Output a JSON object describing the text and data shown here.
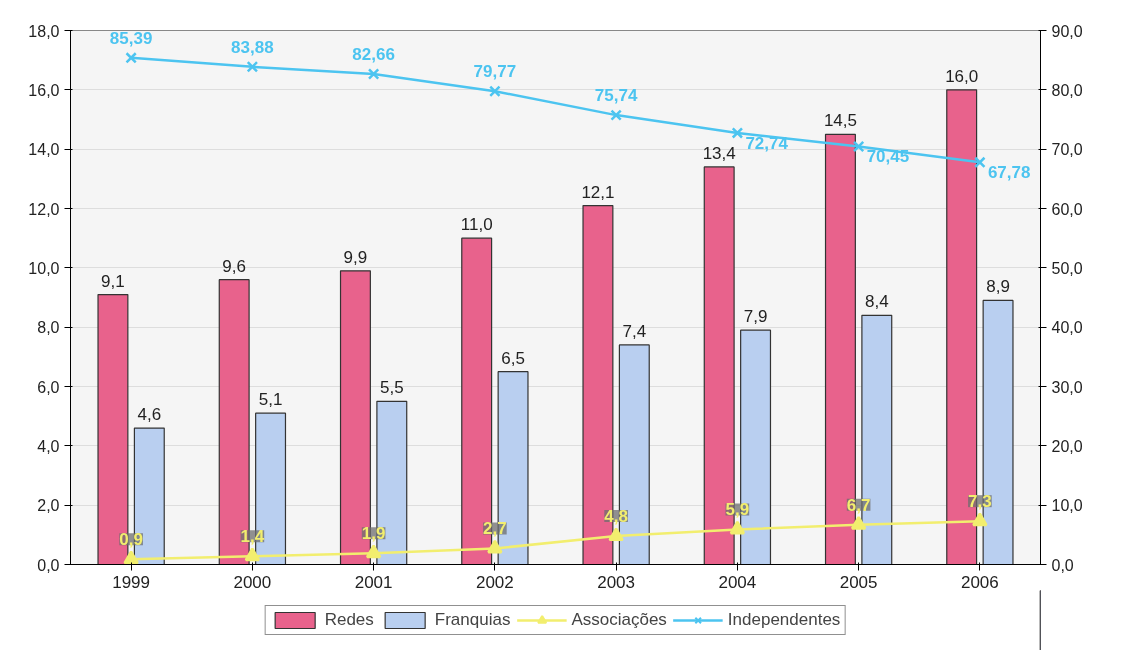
{
  "chart_data": {
    "type": "bar",
    "categories": [
      "1999",
      "2000",
      "2001",
      "2002",
      "2003",
      "2004",
      "2005",
      "2006"
    ],
    "series": [
      {
        "name": "Redes",
        "color": "#e8628c",
        "values": [
          9.1,
          9.6,
          9.9,
          11.0,
          12.1,
          13.4,
          14.5,
          16.0
        ],
        "value_labels": [
          "9,1",
          "9,6",
          "9,9",
          "11,0",
          "12,1",
          "13,4",
          "14,5",
          "16,0"
        ]
      },
      {
        "name": "Franquias",
        "color": "#b9cff0",
        "values": [
          4.6,
          5.1,
          5.5,
          6.5,
          7.4,
          7.9,
          8.4,
          8.9
        ],
        "value_labels": [
          "4,6",
          "5,1",
          "5,5",
          "6,5",
          "7,4",
          "7,9",
          "8,4",
          "8,9"
        ]
      },
      {
        "name": "Associações",
        "type": "line",
        "axis": "y2",
        "marker": "triangle",
        "color": "#f2ee6e",
        "values": [
          0.9,
          1.4,
          1.9,
          2.7,
          4.8,
          5.9,
          6.7,
          7.3
        ],
        "value_labels": [
          "0,9",
          "1,4",
          "1,9",
          "2,7",
          "4,8",
          "5,9",
          "6,7",
          "7,3"
        ]
      },
      {
        "name": "Independentes",
        "type": "line",
        "axis": "y2",
        "marker": "cross",
        "color": "#4cc4f0",
        "values": [
          85.39,
          83.88,
          82.66,
          79.77,
          75.74,
          72.74,
          70.45,
          67.78
        ],
        "value_labels": [
          "85,39",
          "83,88",
          "82,66",
          "79,77",
          "75,74",
          "72,74",
          "70,45",
          "67,78"
        ]
      }
    ],
    "ylim": [
      0,
      18
    ],
    "yticks": [
      {
        "value": 0,
        "label": "0,0"
      },
      {
        "value": 2,
        "label": "2,0"
      },
      {
        "value": 4,
        "label": "4,0"
      },
      {
        "value": 6,
        "label": "6,0"
      },
      {
        "value": 8,
        "label": "8,0"
      },
      {
        "value": 10,
        "label": "10,0"
      },
      {
        "value": 12,
        "label": "12,0"
      },
      {
        "value": 14,
        "label": "14,0"
      },
      {
        "value": 16,
        "label": "16,0"
      },
      {
        "value": 18,
        "label": "18,0"
      }
    ],
    "y2lim": [
      0,
      90
    ],
    "y2ticks": [
      {
        "value": 0,
        "label": "0,0"
      },
      {
        "value": 10,
        "label": "10,0"
      },
      {
        "value": 20,
        "label": "20,0"
      },
      {
        "value": 30,
        "label": "30,0"
      },
      {
        "value": 40,
        "label": "40,0"
      },
      {
        "value": 50,
        "label": "50,0"
      },
      {
        "value": 60,
        "label": "60,0"
      },
      {
        "value": 70,
        "label": "70,0"
      },
      {
        "value": 80,
        "label": "80,0"
      },
      {
        "value": 90,
        "label": "90,0"
      }
    ],
    "grid": "y",
    "legend": "bottom",
    "data_labels": true
  }
}
